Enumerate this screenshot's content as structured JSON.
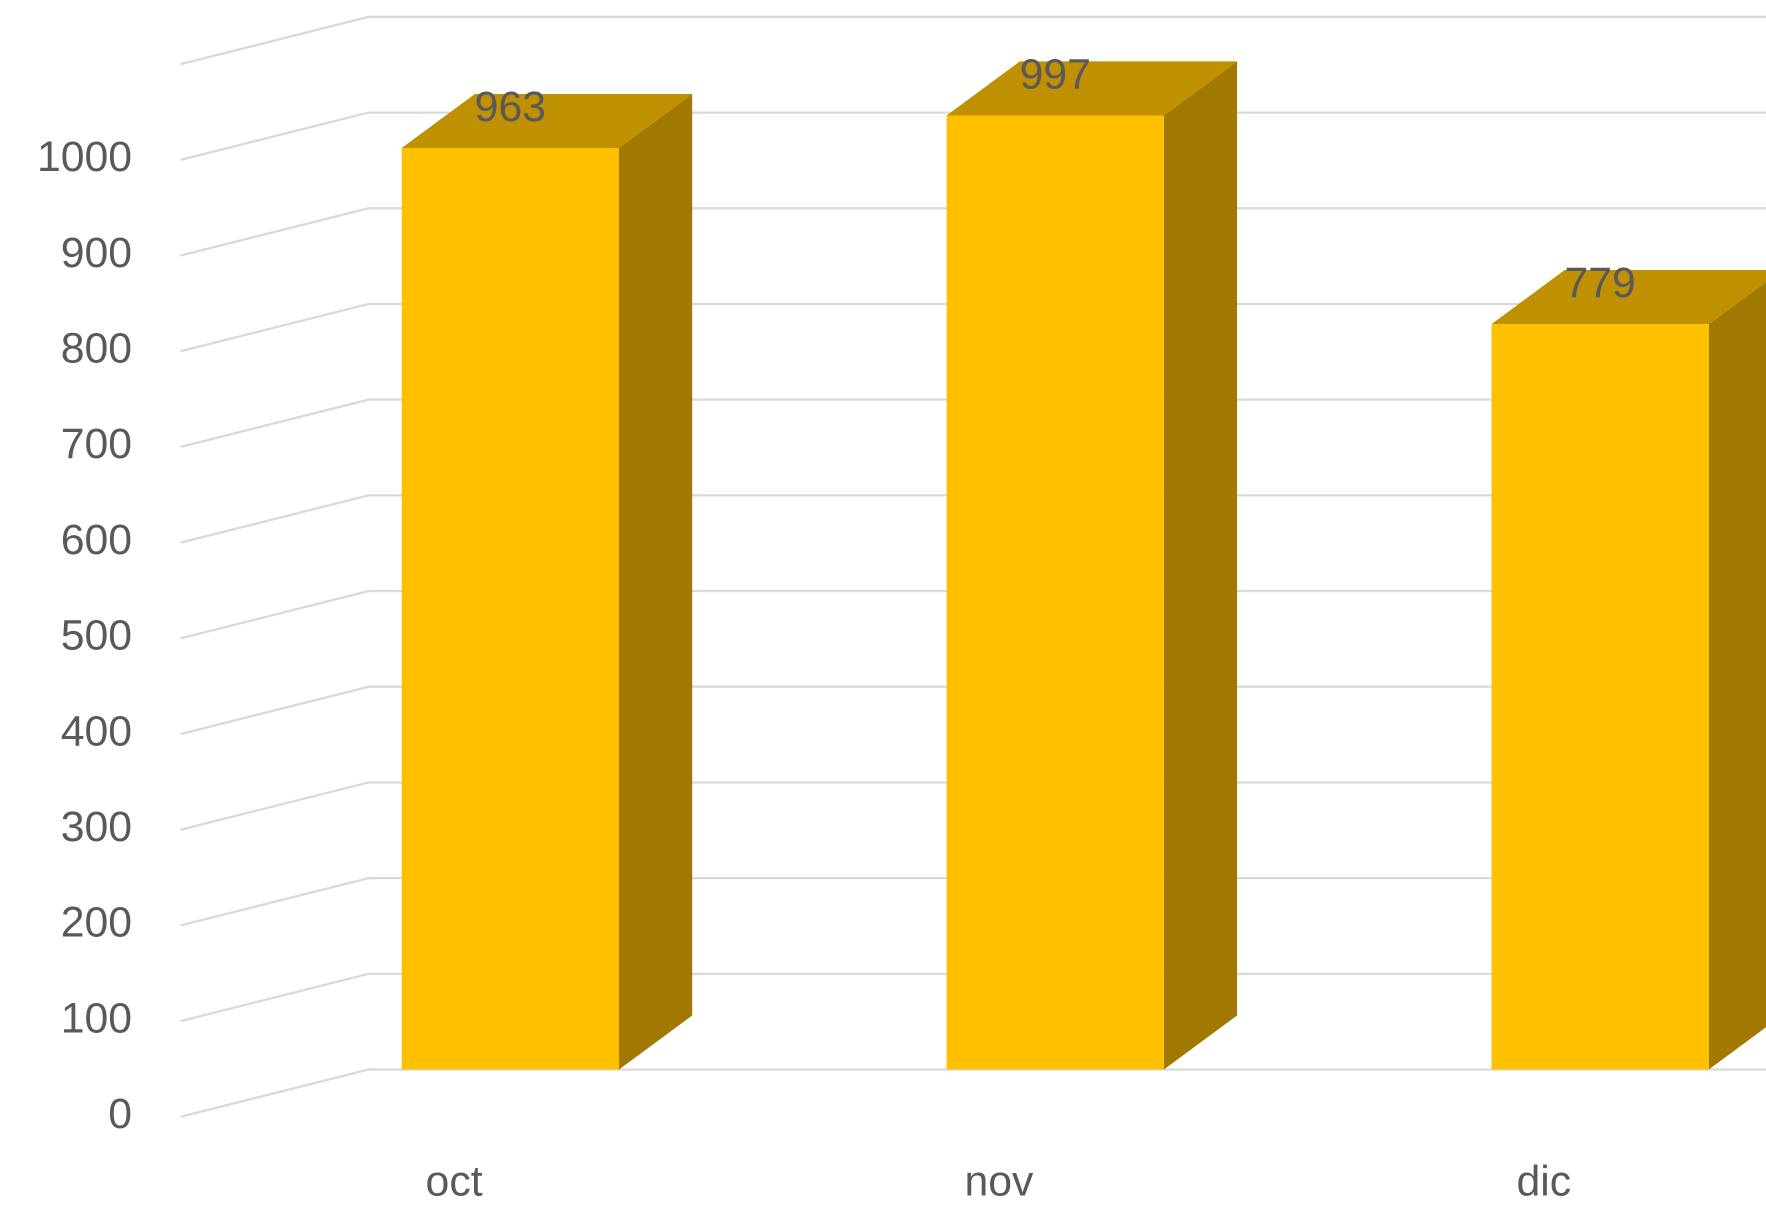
{
  "chart_data": {
    "type": "bar3d",
    "categories": [
      "oct",
      "nov",
      "dic"
    ],
    "values": [
      963,
      997,
      779
    ],
    "color": "#ffc000",
    "ylim": [
      0,
      1100
    ],
    "yticks": [
      0,
      100,
      200,
      300,
      400,
      500,
      600,
      700,
      800,
      900,
      1000
    ],
    "grid": true
  }
}
